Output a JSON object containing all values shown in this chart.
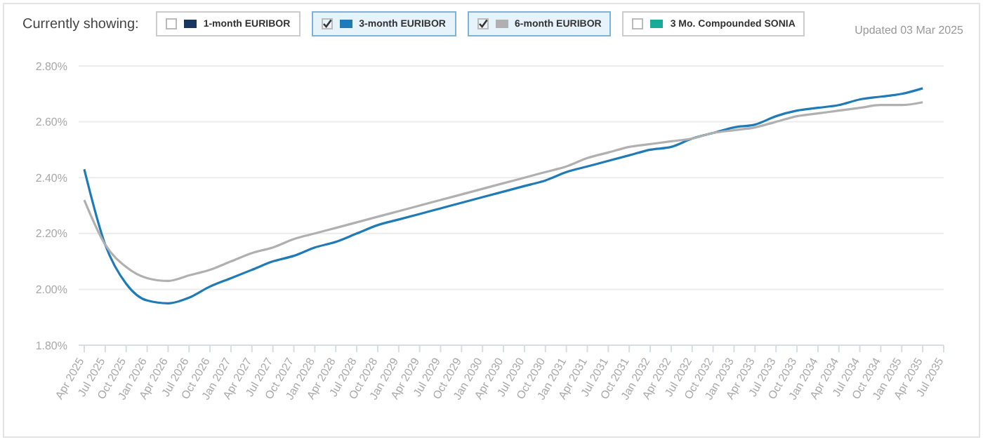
{
  "chart_data": {
    "type": "line",
    "legend_title": "Currently showing:",
    "annotations": [
      "Updated 03 Mar 2025"
    ],
    "categories": [
      "Apr 2025",
      "Jul 2025",
      "Oct 2025",
      "Jan 2026",
      "Apr 2026",
      "Jul 2026",
      "Oct 2026",
      "Jan 2027",
      "Apr 2027",
      "Jul 2027",
      "Oct 2027",
      "Jan 2028",
      "Apr 2028",
      "Jul 2028",
      "Oct 2028",
      "Jan 2029",
      "Apr 2029",
      "Jul 2029",
      "Oct 2029",
      "Jan 2030",
      "Apr 2030",
      "Jul 2030",
      "Oct 2030",
      "Jan 2031",
      "Apr 2031",
      "Jul 2031",
      "Oct 2031",
      "Jan 2032",
      "Apr 2032",
      "Jul 2032",
      "Oct 2032",
      "Jan 2033",
      "Apr 2033",
      "Jul 2033",
      "Oct 2033",
      "Jan 2034",
      "Apr 2034",
      "Jul 2034",
      "Oct 2034",
      "Jan 2035",
      "Apr 2035",
      "Jul 2035"
    ],
    "series": [
      {
        "name": "1-month EURIBOR",
        "color": "#17375e",
        "values": [
          null,
          null,
          null,
          null,
          null,
          null,
          null,
          null,
          null,
          null,
          null,
          null,
          null,
          null,
          null,
          null,
          null,
          null,
          null,
          null,
          null,
          null,
          null,
          null,
          null,
          null,
          null,
          null,
          null,
          null,
          null,
          null,
          null,
          null,
          null,
          null,
          null,
          null,
          null,
          null,
          null,
          null
        ]
      },
      {
        "name": "3-month EURIBOR",
        "color": "#1f7ab8",
        "values": [
          2.43,
          2.16,
          2.02,
          1.96,
          1.95,
          1.97,
          2.01,
          2.04,
          2.07,
          2.1,
          2.12,
          2.15,
          2.17,
          2.2,
          2.23,
          2.25,
          2.27,
          2.29,
          2.31,
          2.33,
          2.35,
          2.37,
          2.39,
          2.42,
          2.44,
          2.46,
          2.48,
          2.5,
          2.51,
          2.54,
          2.56,
          2.58,
          2.59,
          2.62,
          2.64,
          2.65,
          2.66,
          2.68,
          2.69,
          2.7,
          2.72,
          null
        ]
      },
      {
        "name": "6-month EURIBOR",
        "color": "#b0b0b0",
        "values": [
          2.32,
          2.16,
          2.08,
          2.04,
          2.03,
          2.05,
          2.07,
          2.1,
          2.13,
          2.15,
          2.18,
          2.2,
          2.22,
          2.24,
          2.26,
          2.28,
          2.3,
          2.32,
          2.34,
          2.36,
          2.38,
          2.4,
          2.42,
          2.44,
          2.47,
          2.49,
          2.51,
          2.52,
          2.53,
          2.54,
          2.56,
          2.57,
          2.58,
          2.6,
          2.62,
          2.63,
          2.64,
          2.65,
          2.66,
          2.66,
          2.67,
          null
        ]
      },
      {
        "name": "3 Mo. Compounded SONIA",
        "color": "#1aaa9a",
        "values": [
          null,
          null,
          null,
          null,
          null,
          null,
          null,
          null,
          null,
          null,
          null,
          null,
          null,
          null,
          null,
          null,
          null,
          null,
          null,
          null,
          null,
          null,
          null,
          null,
          null,
          null,
          null,
          null,
          null,
          null,
          null,
          null,
          null,
          null,
          null,
          null,
          null,
          null,
          null,
          null,
          null,
          null
        ]
      }
    ],
    "ylim": [
      1.8,
      2.8
    ],
    "yticks": [
      {
        "value": 1.8,
        "label": "1.80%"
      },
      {
        "value": 2.0,
        "label": "2.00%"
      },
      {
        "value": 2.2,
        "label": "2.20%"
      },
      {
        "value": 2.4,
        "label": "2.40%"
      },
      {
        "value": 2.6,
        "label": "2.60%"
      },
      {
        "value": 2.8,
        "label": "2.80%"
      }
    ],
    "grid": "y",
    "legend": "top left",
    "line_style": "solid"
  }
}
